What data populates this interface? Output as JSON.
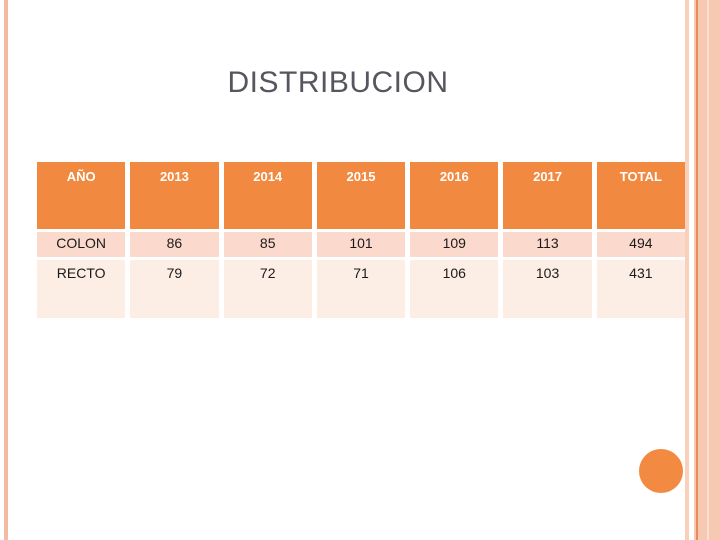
{
  "slide": {
    "title": "DISTRIBUCION",
    "colors": {
      "title_color": "#55565E",
      "header_bg": "#F28940",
      "row_colon_bg": "#FBD9CC",
      "row_recto_bg": "#FCEDE5",
      "accent_circle": "#F28A42",
      "left_stripe": "#F3BBA1",
      "right_stripe_light": "#F8D0BB",
      "right_stripe_mid": "#F7C9B2",
      "right_stripe_dark": "#E98D57",
      "right_stripe_pale": "#FBDFD0"
    }
  },
  "table": {
    "columns": [
      "AÑO",
      "2013",
      "2014",
      "2015",
      "2016",
      "2017",
      "TOTAL"
    ],
    "rows": [
      {
        "label": "COLON",
        "values": [
          "86",
          "85",
          "101",
          "109",
          "113",
          "494"
        ]
      },
      {
        "label": "RECTO",
        "values": [
          "79",
          "72",
          "71",
          "106",
          "103",
          "431"
        ]
      }
    ]
  },
  "chart_data": {
    "type": "table",
    "title": "DISTRIBUCION",
    "categories": [
      "2013",
      "2014",
      "2015",
      "2016",
      "2017"
    ],
    "series": [
      {
        "name": "COLON",
        "values": [
          86,
          85,
          101,
          109,
          113
        ],
        "total": 494
      },
      {
        "name": "RECTO",
        "values": [
          79,
          72,
          71,
          106,
          103
        ],
        "total": 431
      }
    ]
  }
}
